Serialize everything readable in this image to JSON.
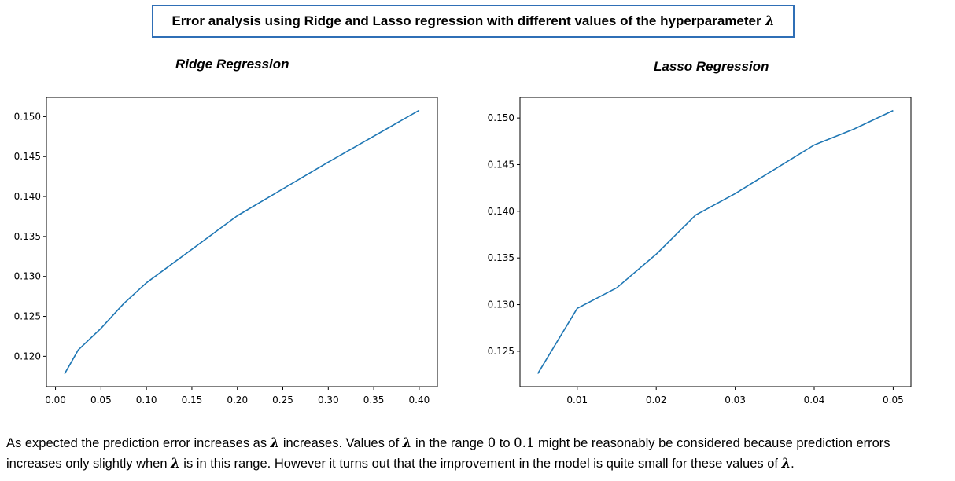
{
  "header": {
    "title": "Error analysis using Ridge and Lasso regression with different values of the hyperparameter",
    "symbol": "λ"
  },
  "chart_data": [
    {
      "type": "line",
      "title": "Ridge Regression",
      "xlabel": "",
      "ylabel": "",
      "x": [
        0.01,
        0.025,
        0.05,
        0.075,
        0.1,
        0.2,
        0.3,
        0.4
      ],
      "series": [
        {
          "values": [
            0.1178,
            0.1208,
            0.1235,
            0.1266,
            0.1292,
            0.1376,
            0.1443,
            0.1508
          ],
          "color": "#1f77b4"
        }
      ],
      "xlim": [
        -0.01,
        0.42
      ],
      "ylim": [
        0.1162,
        0.1524
      ],
      "xticks": [
        0.0,
        0.05,
        0.1,
        0.15,
        0.2,
        0.25,
        0.3,
        0.35,
        0.4
      ],
      "xtick_labels": [
        "0.00",
        "0.05",
        "0.10",
        "0.15",
        "0.20",
        "0.25",
        "0.30",
        "0.35",
        "0.40"
      ],
      "yticks": [
        0.12,
        0.125,
        0.13,
        0.135,
        0.14,
        0.145,
        0.15
      ],
      "ytick_labels": [
        "0.120",
        "0.125",
        "0.130",
        "0.135",
        "0.140",
        "0.145",
        "0.150"
      ],
      "grid": false,
      "legend": "none"
    },
    {
      "type": "line",
      "title": "Lasso Regression",
      "xlabel": "",
      "ylabel": "",
      "x": [
        0.005,
        0.01,
        0.015,
        0.02,
        0.025,
        0.03,
        0.04,
        0.045,
        0.05
      ],
      "series": [
        {
          "values": [
            0.1226,
            0.1296,
            0.1318,
            0.1354,
            0.1396,
            0.1419,
            0.1471,
            0.1488,
            0.1508
          ],
          "color": "#1f77b4"
        }
      ],
      "xlim": [
        0.00275,
        0.05225
      ],
      "ylim": [
        0.1212,
        0.1522
      ],
      "xticks": [
        0.01,
        0.02,
        0.03,
        0.04,
        0.05
      ],
      "xtick_labels": [
        "0.01",
        "0.02",
        "0.03",
        "0.04",
        "0.05"
      ],
      "yticks": [
        0.125,
        0.13,
        0.135,
        0.14,
        0.145,
        0.15
      ],
      "ytick_labels": [
        "0.125",
        "0.130",
        "0.135",
        "0.140",
        "0.145",
        "0.150"
      ],
      "grid": false,
      "legend": "none"
    }
  ],
  "caption": {
    "t1": "As expected the prediction error increases as ",
    "lam": "λ",
    "t2": " increases. Values of ",
    "t3": " in the range ",
    "n0": "0",
    "t4": " to ",
    "n1": "0.1",
    "t5": " might be reasonably be considered because prediction errors",
    "t6": "increases only slightly when ",
    "t7": " is in this range. However it turns out that the improvement in the model is quite small for these values of ",
    "t8": "."
  }
}
